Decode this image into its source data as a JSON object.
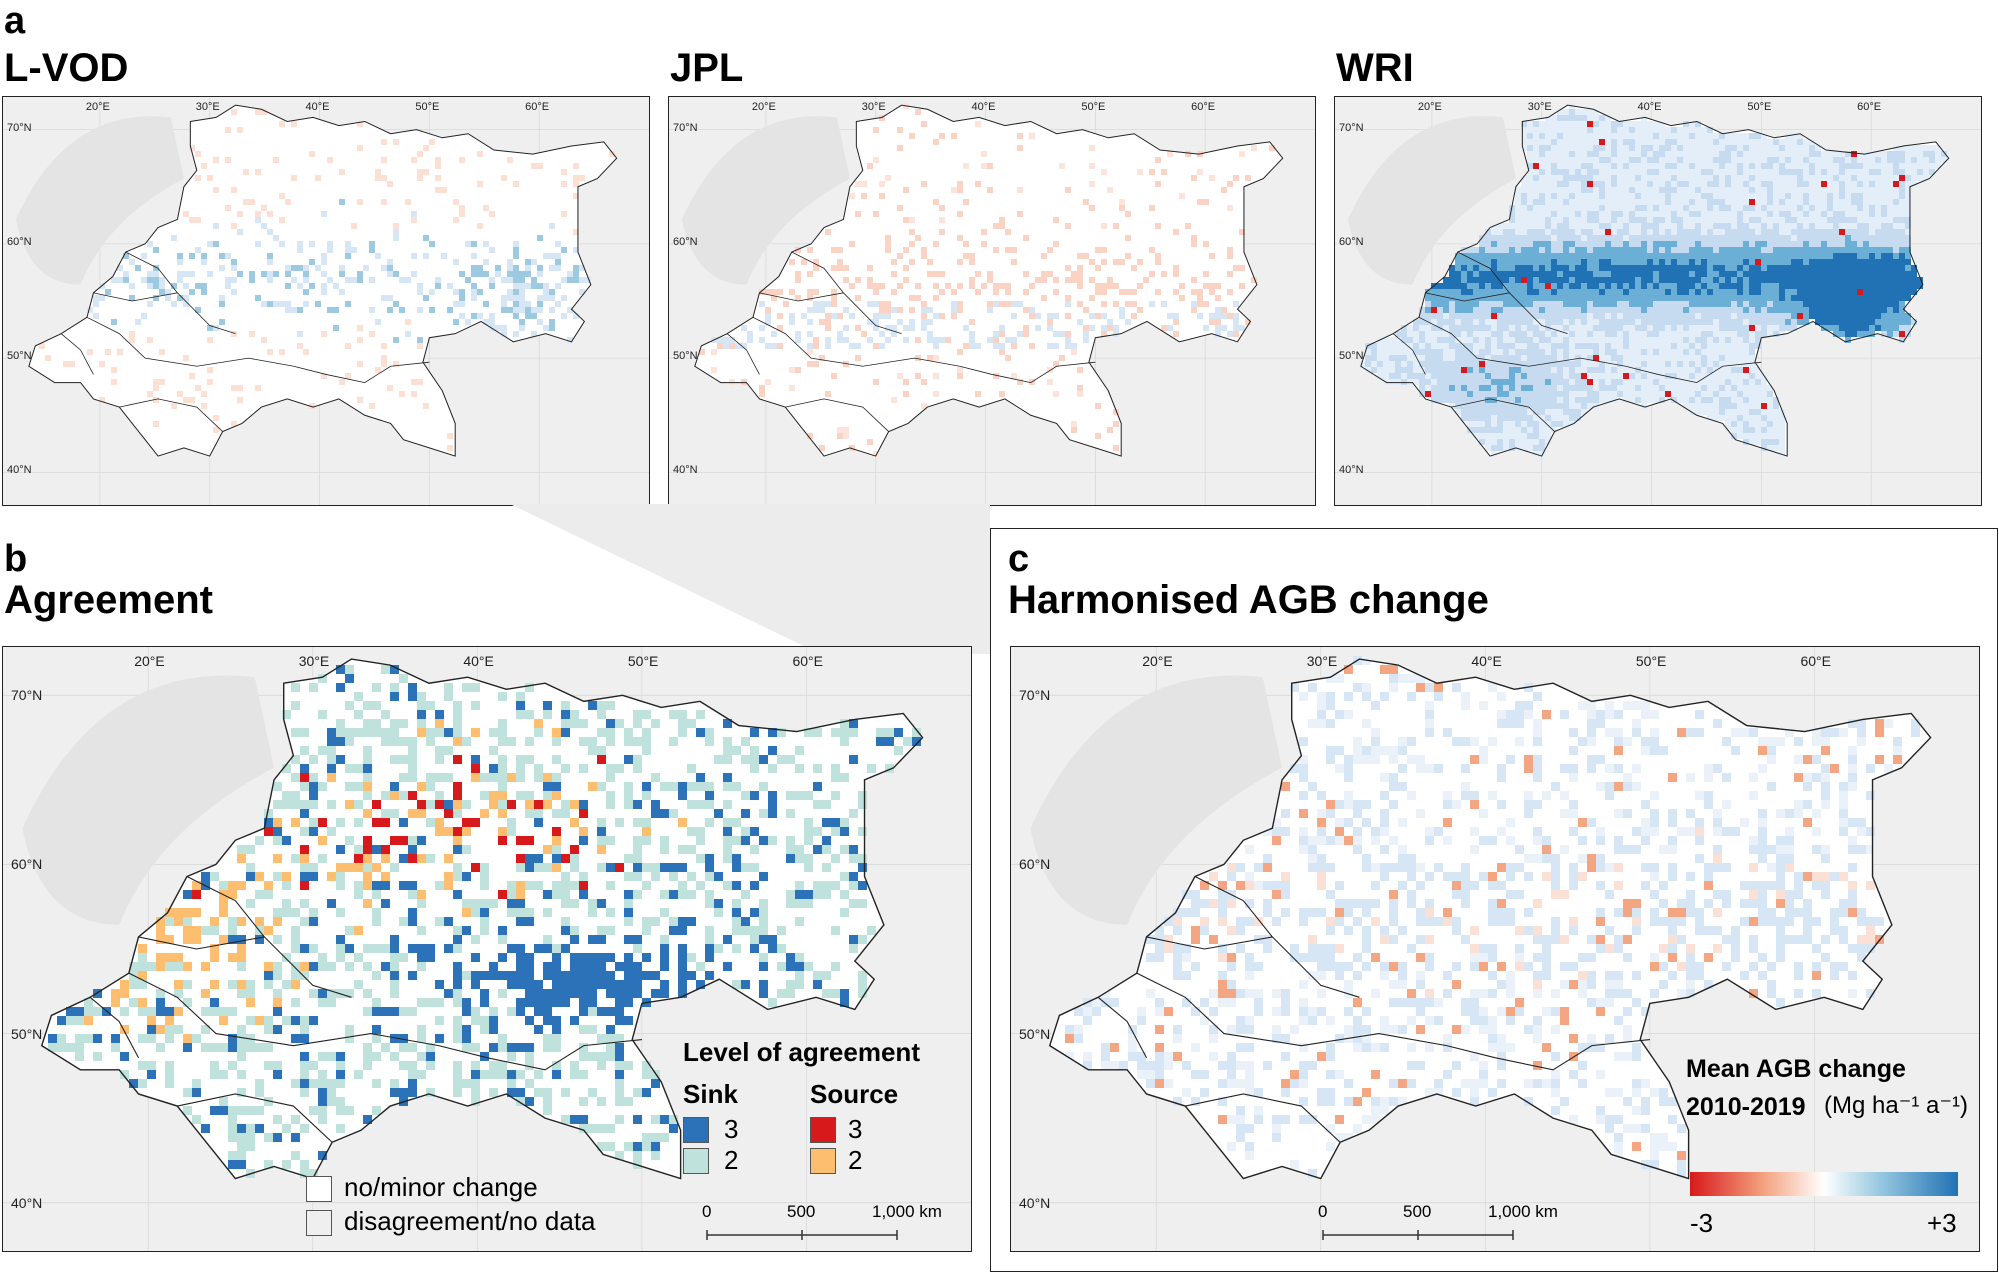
{
  "panel_a": {
    "letter": "a",
    "maps": [
      {
        "title": "L-VOD",
        "key": "lvod"
      },
      {
        "title": "JPL",
        "key": "jpl"
      },
      {
        "title": "WRI",
        "key": "wri"
      }
    ],
    "lon_labels": [
      "20°E",
      "30°E",
      "40°E",
      "50°E",
      "60°E"
    ],
    "lat_labels": [
      "70°N",
      "60°N",
      "50°N",
      "40°N"
    ]
  },
  "panel_b": {
    "letter": "b",
    "title": "Agreement",
    "lon_labels": [
      "20°E",
      "30°E",
      "40°E",
      "50°E",
      "60°E"
    ],
    "lat_labels": [
      "70°N",
      "60°N",
      "50°N",
      "40°N"
    ],
    "legend": {
      "heading": "Level of agreement",
      "sink_label": "Sink",
      "source_label": "Source",
      "sink_items": [
        {
          "value": "3",
          "color": "#2b72b8"
        },
        {
          "value": "2",
          "color": "#bfe3dc"
        }
      ],
      "source_items": [
        {
          "value": "3",
          "color": "#d7191c"
        },
        {
          "value": "2",
          "color": "#fdbe6f"
        }
      ],
      "other_items": [
        {
          "label": "no/minor change",
          "color": "#ffffff"
        },
        {
          "label": "disagreement/no data",
          "color": "#efefef"
        }
      ]
    },
    "scale": [
      "0",
      "500",
      "1,000 km"
    ]
  },
  "panel_c": {
    "letter": "c",
    "title": "Harmonised AGB change",
    "lon_labels": [
      "20°E",
      "30°E",
      "40°E",
      "50°E",
      "60°E"
    ],
    "lat_labels": [
      "70°N",
      "60°N",
      "50°N",
      "40°N"
    ],
    "colorbar": {
      "title_line1": "Mean AGB change",
      "title_line2": "2010-2019",
      "unit": "(Mg ha⁻¹ a⁻¹)",
      "min_label": "-3",
      "max_label": "+3",
      "min_color": "#d7191c",
      "mid_color": "#ffffff",
      "max_color": "#2171b5"
    },
    "scale": [
      "0",
      "500",
      "1,000 km"
    ]
  }
}
